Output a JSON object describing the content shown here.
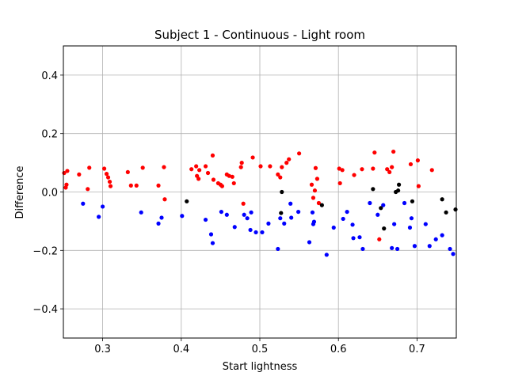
{
  "chart_data": {
    "type": "scatter",
    "title": "Subject 1 - Continuous - Light room",
    "xlabel": "Start lightness",
    "ylabel": "Difference",
    "xlim": [
      0.25,
      0.75
    ],
    "ylim": [
      -0.5,
      0.5
    ],
    "xticks": [
      0.3,
      0.4,
      0.5,
      0.6,
      0.7
    ],
    "xtick_labels": [
      "0.3",
      "0.4",
      "0.5",
      "0.6",
      "0.7"
    ],
    "yticks": [
      -0.4,
      -0.2,
      0.0,
      0.2,
      0.4
    ],
    "ytick_labels": [
      "−0.4",
      "−0.2",
      "0.0",
      "0.2",
      "0.4"
    ],
    "grid": true,
    "series": [
      {
        "color": "#ff0000",
        "points": [
          [
            0.251,
            0.065
          ],
          [
            0.253,
            0.015
          ],
          [
            0.254,
            0.025
          ],
          [
            0.255,
            0.072
          ],
          [
            0.27,
            0.06
          ],
          [
            0.281,
            0.01
          ],
          [
            0.283,
            0.083
          ],
          [
            0.302,
            0.08
          ],
          [
            0.305,
            0.062
          ],
          [
            0.307,
            0.05
          ],
          [
            0.309,
            0.035
          ],
          [
            0.31,
            0.02
          ],
          [
            0.332,
            0.068
          ],
          [
            0.336,
            0.022
          ],
          [
            0.343,
            0.022
          ],
          [
            0.351,
            0.083
          ],
          [
            0.371,
            0.022
          ],
          [
            0.378,
            0.085
          ],
          [
            0.379,
            -0.025
          ],
          [
            0.413,
            0.078
          ],
          [
            0.419,
            0.088
          ],
          [
            0.42,
            0.055
          ],
          [
            0.422,
            0.045
          ],
          [
            0.423,
            0.075
          ],
          [
            0.431,
            0.088
          ],
          [
            0.434,
            0.065
          ],
          [
            0.44,
            0.125
          ],
          [
            0.441,
            0.042
          ],
          [
            0.447,
            0.03
          ],
          [
            0.45,
            0.025
          ],
          [
            0.452,
            0.02
          ],
          [
            0.458,
            0.06
          ],
          [
            0.461,
            0.055
          ],
          [
            0.465,
            0.052
          ],
          [
            0.467,
            0.03
          ],
          [
            0.476,
            0.085
          ],
          [
            0.477,
            0.1
          ],
          [
            0.479,
            -0.04
          ],
          [
            0.491,
            0.118
          ],
          [
            0.501,
            0.088
          ],
          [
            0.513,
            0.088
          ],
          [
            0.523,
            0.06
          ],
          [
            0.526,
            0.05
          ],
          [
            0.528,
            0.085
          ],
          [
            0.534,
            0.1
          ],
          [
            0.537,
            0.112
          ],
          [
            0.55,
            0.132
          ],
          [
            0.566,
            0.025
          ],
          [
            0.568,
            -0.02
          ],
          [
            0.57,
            0.005
          ],
          [
            0.571,
            0.082
          ],
          [
            0.573,
            0.045
          ],
          [
            0.575,
            -0.038
          ],
          [
            0.601,
            0.08
          ],
          [
            0.602,
            0.03
          ],
          [
            0.605,
            0.075
          ],
          [
            0.62,
            0.058
          ],
          [
            0.63,
            0.078
          ],
          [
            0.644,
            0.08
          ],
          [
            0.646,
            0.135
          ],
          [
            0.652,
            -0.162
          ],
          [
            0.662,
            0.078
          ],
          [
            0.665,
            0.068
          ],
          [
            0.668,
            0.085
          ],
          [
            0.67,
            0.138
          ],
          [
            0.692,
            0.095
          ],
          [
            0.701,
            0.108
          ],
          [
            0.702,
            0.02
          ],
          [
            0.719,
            0.075
          ]
        ]
      },
      {
        "color": "#0000ff",
        "points": [
          [
            0.275,
            -0.04
          ],
          [
            0.295,
            -0.085
          ],
          [
            0.3,
            -0.05
          ],
          [
            0.349,
            -0.07
          ],
          [
            0.371,
            -0.108
          ],
          [
            0.375,
            -0.088
          ],
          [
            0.401,
            -0.082
          ],
          [
            0.431,
            -0.095
          ],
          [
            0.438,
            -0.145
          ],
          [
            0.44,
            -0.175
          ],
          [
            0.451,
            -0.068
          ],
          [
            0.458,
            -0.078
          ],
          [
            0.468,
            -0.12
          ],
          [
            0.48,
            -0.078
          ],
          [
            0.484,
            -0.09
          ],
          [
            0.488,
            -0.13
          ],
          [
            0.489,
            -0.07
          ],
          [
            0.495,
            -0.138
          ],
          [
            0.503,
            -0.138
          ],
          [
            0.511,
            -0.108
          ],
          [
            0.523,
            -0.195
          ],
          [
            0.526,
            -0.09
          ],
          [
            0.531,
            -0.108
          ],
          [
            0.539,
            -0.04
          ],
          [
            0.54,
            -0.088
          ],
          [
            0.549,
            -0.068
          ],
          [
            0.563,
            -0.172
          ],
          [
            0.567,
            -0.07
          ],
          [
            0.568,
            -0.11
          ],
          [
            0.569,
            -0.102
          ],
          [
            0.585,
            -0.215
          ],
          [
            0.594,
            -0.122
          ],
          [
            0.606,
            -0.092
          ],
          [
            0.611,
            -0.068
          ],
          [
            0.618,
            -0.112
          ],
          [
            0.619,
            -0.158
          ],
          [
            0.627,
            -0.155
          ],
          [
            0.631,
            -0.195
          ],
          [
            0.64,
            -0.038
          ],
          [
            0.65,
            -0.078
          ],
          [
            0.657,
            -0.045
          ],
          [
            0.668,
            -0.192
          ],
          [
            0.671,
            -0.11
          ],
          [
            0.675,
            -0.195
          ],
          [
            0.684,
            -0.038
          ],
          [
            0.691,
            -0.122
          ],
          [
            0.693,
            -0.09
          ],
          [
            0.697,
            -0.185
          ],
          [
            0.711,
            -0.11
          ],
          [
            0.716,
            -0.185
          ],
          [
            0.724,
            -0.162
          ],
          [
            0.732,
            -0.148
          ],
          [
            0.742,
            -0.195
          ],
          [
            0.746,
            -0.212
          ]
        ]
      },
      {
        "color": "#000000",
        "points": [
          [
            0.407,
            -0.032
          ],
          [
            0.527,
            -0.072
          ],
          [
            0.528,
            0.0
          ],
          [
            0.579,
            -0.045
          ],
          [
            0.644,
            0.01
          ],
          [
            0.654,
            -0.055
          ],
          [
            0.658,
            -0.125
          ],
          [
            0.673,
            0.0
          ],
          [
            0.676,
            0.005
          ],
          [
            0.677,
            0.025
          ],
          [
            0.694,
            -0.032
          ],
          [
            0.732,
            -0.025
          ],
          [
            0.737,
            -0.07
          ],
          [
            0.749,
            -0.06
          ]
        ]
      }
    ]
  }
}
